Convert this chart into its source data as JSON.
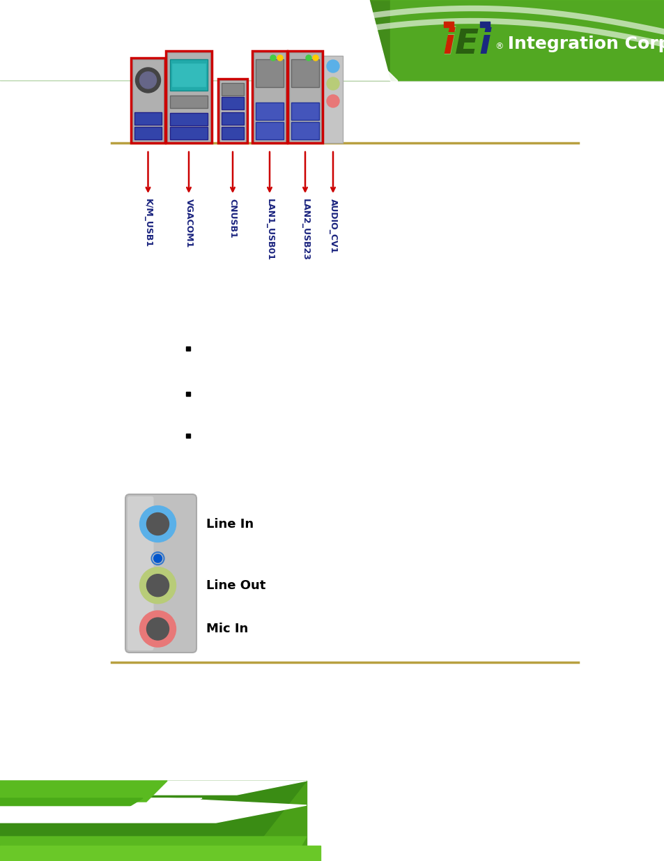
{
  "bg_color": "#ffffff",
  "label_color": "#1a237e",
  "arrow_color": "#cc0000",
  "connector_labels": [
    "K/M_USB1",
    "VGACOM1",
    "CNUSB1",
    "LAN1_USB01",
    "LAN2_USB23",
    "AUDIO_CV1"
  ],
  "horizon_line_color": "#b8a040",
  "audio_line_in_color": "#5ab0e8",
  "audio_line_out_color": "#b8cc78",
  "audio_mic_in_color": "#e87878",
  "audio_inner_color": "#555555",
  "panel_color": "#c8c8c8",
  "label_fontsize": 9,
  "audio_label_fontsize": 13
}
